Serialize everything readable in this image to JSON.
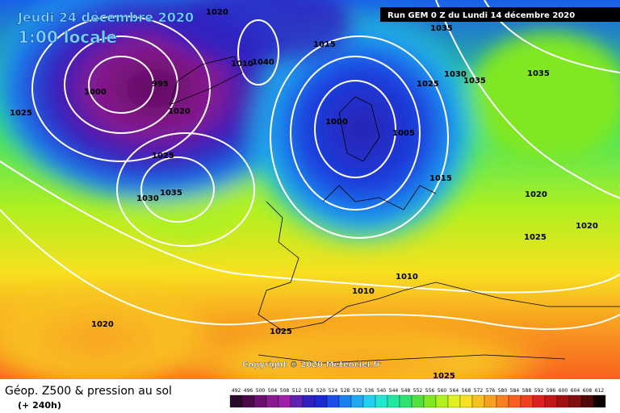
{
  "header": {
    "date": "Jeudi 24 décembre 2020",
    "time": "1:00 locale",
    "run": "Run GEM 0 Z du Lundi 14 décembre 2020"
  },
  "copyright": "Copyright © 2020 Meteociel.fr",
  "footer": {
    "title": "Géop. Z500 & pression au sol",
    "lead": "(+ 240h)"
  },
  "isobars": [
    1020,
    1015,
    1035,
    1010,
    1040,
    1000,
    995,
    1025,
    1020,
    1000,
    1005,
    1025,
    1030,
    1035,
    1015,
    1020,
    1025,
    1020,
    1030,
    1035,
    1035,
    1010,
    1010,
    1020,
    1025,
    1025,
    1025
  ],
  "legend": {
    "levels": [
      492,
      496,
      500,
      504,
      508,
      512,
      516,
      520,
      524,
      528,
      532,
      536,
      540,
      544,
      548,
      552,
      556,
      560,
      564,
      568,
      572,
      576,
      580,
      584,
      588,
      592,
      596,
      600,
      604,
      608,
      612
    ],
    "colors": [
      "#2a0a2a",
      "#4a0a4a",
      "#6a1070",
      "#8a1a90",
      "#a020a8",
      "#6020b0",
      "#3020c0",
      "#1a2ad0",
      "#1a50e8",
      "#1a80f0",
      "#20a8f0",
      "#20d0f0",
      "#20e8d0",
      "#20e8a0",
      "#30e070",
      "#50e040",
      "#80e820",
      "#b0f020",
      "#e0f020",
      "#f8e020",
      "#f8c020",
      "#f8a020",
      "#f88020",
      "#f86020",
      "#f04020",
      "#e02020",
      "#c01818",
      "#a01010",
      "#801010",
      "#500808",
      "#100000"
    ]
  }
}
